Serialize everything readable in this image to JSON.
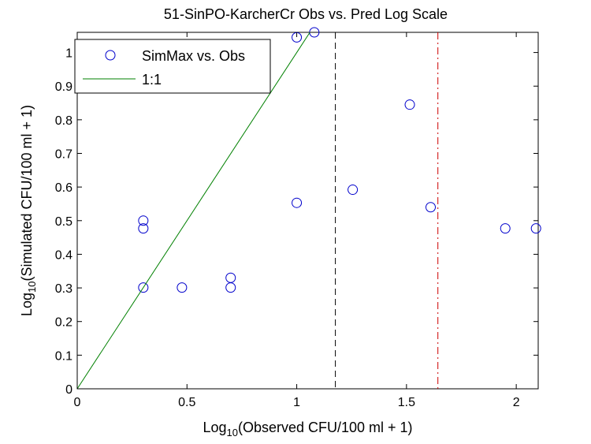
{
  "chart_data": {
    "type": "scatter",
    "title": "51-SinPO-KarcherCr Obs vs. Pred Log Scale",
    "xlabel": {
      "prefix": "Log",
      "sub": "10",
      "suffix": "(Observed CFU/100 ml + 1)"
    },
    "ylabel": {
      "prefix": "Log",
      "sub": "10",
      "suffix": "(Simulated CFU/100 ml + 1)"
    },
    "xlim": [
      0,
      2.1
    ],
    "ylim": [
      0,
      1.06
    ],
    "xticks": [
      0,
      0.5,
      1,
      1.5,
      2
    ],
    "xtick_labels": [
      "0",
      "0.5",
      "1",
      "1.5",
      "2"
    ],
    "yticks": [
      0,
      0.1,
      0.2,
      0.3,
      0.4,
      0.5,
      0.6,
      0.7,
      0.8,
      0.9,
      1
    ],
    "ytick_labels": [
      "0",
      "0.1",
      "0.2",
      "0.3",
      "0.4",
      "0.5",
      "0.6",
      "0.7",
      "0.8",
      "0.9",
      "1"
    ],
    "grid": false,
    "legend_position": "top-left",
    "series": [
      {
        "name": "SimMax vs. Obs",
        "kind": "scatter",
        "marker": "circle-open",
        "color": "#0000cc",
        "x": [
          0.301,
          0.301,
          0.301,
          0.477,
          0.699,
          0.699,
          1.0,
          1.0,
          1.08,
          1.255,
          1.515,
          1.61,
          1.95,
          2.09
        ],
        "y": [
          0.301,
          0.477,
          0.5,
          0.301,
          0.301,
          0.33,
          0.553,
          1.045,
          1.06,
          0.592,
          0.845,
          0.54,
          0.477,
          0.477
        ]
      },
      {
        "name": "1:1",
        "kind": "line",
        "color": "#008000",
        "x": [
          0,
          1.06
        ],
        "y": [
          0,
          1.06
        ]
      }
    ],
    "reference_lines": [
      {
        "orientation": "vertical",
        "x": 1.176,
        "color": "#000000",
        "style": "dashed"
      },
      {
        "orientation": "vertical",
        "x": 1.643,
        "color": "#cc0000",
        "style": "dashdot"
      }
    ]
  }
}
